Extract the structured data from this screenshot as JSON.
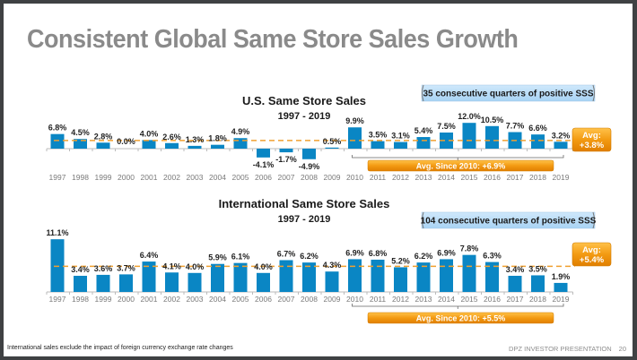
{
  "slide": {
    "title": "Consistent Global Same Store Sales Growth",
    "footnote": "International sales exclude the impact of foreign currency exchange rate changes",
    "footer_label": "DPZ INVESTOR PRESENTATION",
    "page_number": "20"
  },
  "colors": {
    "bar": "#0a86c4",
    "avg_line": "#f0a030",
    "orange": "#f39a12",
    "callout_fill": "#b7dcf7",
    "title_gray": "#8a8a8a"
  },
  "chart_data": [
    {
      "type": "bar",
      "title": "U.S. Same Store Sales",
      "subtitle": "1997 - 2019",
      "categories": [
        "1997",
        "1998",
        "1999",
        "2000",
        "2001",
        "2002",
        "2003",
        "2004",
        "2005",
        "2006",
        "2007",
        "2008",
        "2009",
        "2010",
        "2011",
        "2012",
        "2013",
        "2014",
        "2015",
        "2016",
        "2017",
        "2018",
        "2019"
      ],
      "values": [
        6.8,
        4.5,
        2.8,
        0.0,
        4.0,
        2.6,
        1.3,
        1.8,
        4.9,
        -4.1,
        -1.7,
        -4.9,
        0.5,
        9.9,
        3.5,
        3.1,
        5.4,
        7.5,
        12.0,
        10.5,
        7.7,
        6.6,
        3.2
      ],
      "value_labels": [
        "6.8%",
        "4.5%",
        "2.8%",
        "0.0%",
        "4.0%",
        "2.6%",
        "1.3%",
        "1.8%",
        "4.9%",
        "-4.1%",
        "-1.7%",
        "-4.9%",
        "0.5%",
        "9.9%",
        "3.5%",
        "3.1%",
        "5.4%",
        "7.5%",
        "12.0%",
        "10.5%",
        "7.7%",
        "6.6%",
        "3.2%"
      ],
      "average": 3.8,
      "average_label_line1": "Avg:",
      "average_label_line2": "+3.8%",
      "since_2010_label": "Avg. Since 2010: +6.9%",
      "since_2010_range": [
        "2010",
        "2019"
      ],
      "callout": "35 consecutive quarters of positive SSS",
      "unit": "%"
    },
    {
      "type": "bar",
      "title": "International Same Store Sales",
      "subtitle": "1997 - 2019",
      "categories": [
        "1997",
        "1998",
        "1999",
        "2000",
        "2001",
        "2002",
        "2003",
        "2004",
        "2005",
        "2006",
        "2007",
        "2008",
        "2009",
        "2010",
        "2011",
        "2012",
        "2013",
        "2014",
        "2015",
        "2016",
        "2017",
        "2018",
        "2019"
      ],
      "values": [
        11.1,
        3.4,
        3.6,
        3.7,
        6.4,
        4.1,
        4.0,
        5.9,
        6.1,
        4.0,
        6.7,
        6.2,
        4.3,
        6.9,
        6.8,
        5.2,
        6.2,
        6.9,
        7.8,
        6.3,
        3.4,
        3.5,
        1.9
      ],
      "value_labels": [
        "11.1%",
        "3.4%",
        "3.6%",
        "3.7%",
        "6.4%",
        "4.1%",
        "4.0%",
        "5.9%",
        "6.1%",
        "4.0%",
        "6.7%",
        "6.2%",
        "4.3%",
        "6.9%",
        "6.8%",
        "5.2%",
        "6.2%",
        "6.9%",
        "7.8%",
        "6.3%",
        "3.4%",
        "3.5%",
        "1.9%"
      ],
      "average": 5.4,
      "average_label_line1": "Avg:",
      "average_label_line2": "+5.4%",
      "since_2010_label": "Avg. Since 2010: +5.5%",
      "since_2010_range": [
        "2010",
        "2019"
      ],
      "callout": "104 consecutive quarters of positive SSS",
      "unit": "%"
    }
  ]
}
